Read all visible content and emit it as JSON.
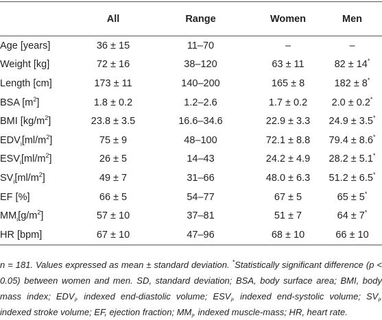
{
  "table": {
    "columns": [
      "All",
      "Range",
      "Women",
      "Men"
    ],
    "rows": [
      {
        "label": [
          "Age [years]"
        ],
        "cells": [
          "36 ± 15",
          "11–70",
          "–",
          "–"
        ]
      },
      {
        "label": [
          "Weight [kg]"
        ],
        "cells": [
          "72 ± 16",
          "38–120",
          "63 ± 11",
          [
            "82 ± 14",
            {
              "sup": "*"
            }
          ]
        ]
      },
      {
        "label": [
          "Length [cm]"
        ],
        "cells": [
          "173 ± 11",
          "140–200",
          "165 ± 8",
          [
            "182 ± 8",
            {
              "sup": "*"
            }
          ]
        ]
      },
      {
        "label": [
          "BSA [m",
          {
            "sup": "2"
          },
          "]"
        ],
        "cells": [
          "1.8 ± 0.2",
          "1.2–2.6",
          "1.7 ± 0.2",
          [
            "2.0 ± 0.2",
            {
              "sup": "*"
            }
          ]
        ]
      },
      {
        "label": [
          "BMI [kg/m",
          {
            "sup": "2"
          },
          "]"
        ],
        "cells": [
          "23.8 ± 3.5",
          "16.6–34.6",
          "22.9 ± 3.3",
          [
            "24.9 ± 3.5",
            {
              "sup": "*"
            }
          ]
        ]
      },
      {
        "label": [
          "EDV",
          {
            "sub": "i"
          },
          "[ml/m",
          {
            "sup": "2"
          },
          "]"
        ],
        "cells": [
          "75 ± 9",
          "48–100",
          "72.1 ± 8.8",
          [
            "79.4 ± 8.6",
            {
              "sup": "*"
            }
          ]
        ]
      },
      {
        "label": [
          "ESV",
          {
            "sub": "i"
          },
          "[ml/m",
          {
            "sup": "2"
          },
          "]"
        ],
        "cells": [
          "26 ± 5",
          "14–43",
          "24.2 ± 4.9",
          [
            "28.2 ± 5.1",
            {
              "sup": "*"
            }
          ]
        ]
      },
      {
        "label": [
          "SV",
          {
            "sub": "i"
          },
          "[ml/m",
          {
            "sup": "2"
          },
          "]"
        ],
        "cells": [
          "49 ± 7",
          "31–66",
          "48.0 ± 6.3",
          [
            "51.2 ± 6.5",
            {
              "sup": "*"
            }
          ]
        ]
      },
      {
        "label": [
          "EF [%]"
        ],
        "cells": [
          "66 ± 5",
          "54–77",
          "67 ± 5",
          [
            "65 ± 5",
            {
              "sup": "*"
            }
          ]
        ]
      },
      {
        "label": [
          "MM",
          {
            "sub": "i"
          },
          "[g/m",
          {
            "sup": "2"
          },
          "]"
        ],
        "cells": [
          "57 ± 10",
          "37–81",
          "51 ± 7",
          [
            "64 ± 7",
            {
              "sup": "*"
            }
          ]
        ]
      },
      {
        "label": [
          "HR [bpm]"
        ],
        "cells": [
          "67 ± 10",
          "47–96",
          "68 ± 10",
          "66 ± 10"
        ]
      }
    ],
    "footnote": [
      "n = 181. Values expressed as mean ± standard deviation. ",
      {
        "sup": "*"
      },
      "Statistically significant difference (p < 0.05) between women and men. SD, standard deviation; BSA, body surface area; BMI, body mass index; EDV",
      {
        "sub": "i"
      },
      ", indexed end-diastolic volume; ESV",
      {
        "sub": "i"
      },
      ", indexed end-systolic volume; SV",
      {
        "sub": "i"
      },
      ", indexed stroke volume; EF, ejection fraction; MM",
      {
        "sub": "i"
      },
      ", indexed muscle-mass; HR, heart rate."
    ]
  }
}
